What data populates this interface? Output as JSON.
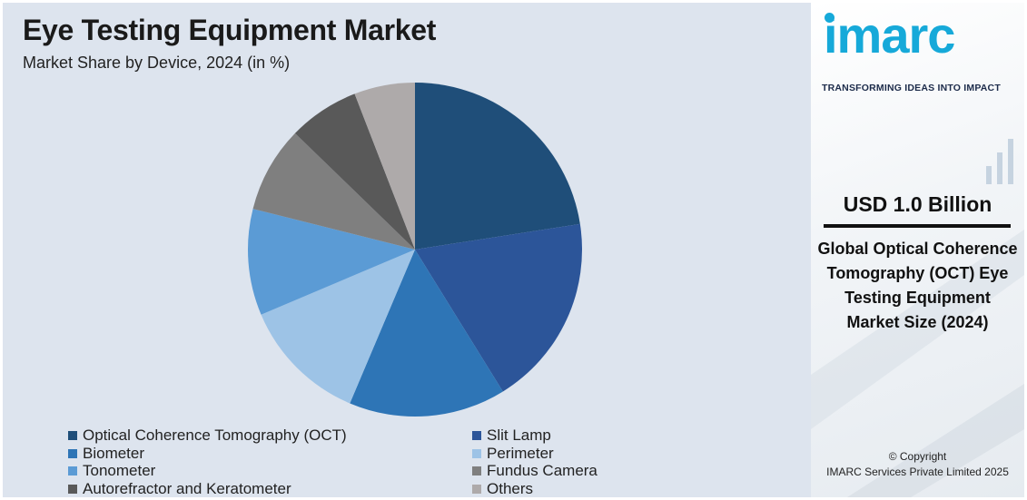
{
  "header": {
    "title": "Eye Testing Equipment Market",
    "subtitle": "Market Share by Device, 2024 (in %)"
  },
  "chart_data": {
    "type": "pie",
    "title": "Eye Testing Equipment Market",
    "subtitle": "Market Share by Device, 2024 (in %)",
    "start_angle_deg": 0,
    "direction": "clockwise",
    "legend_position": "bottom",
    "slices": [
      {
        "label": "Optical Coherence Tomography (OCT)",
        "value": 23.0,
        "color": "#1f4e79"
      },
      {
        "label": "Slit Lamp",
        "value": 19.0,
        "color": "#2c5599"
      },
      {
        "label": "Biometer",
        "value": 15.5,
        "color": "#2e75b6"
      },
      {
        "label": "Perimeter",
        "value": 12.5,
        "color": "#9dc3e6"
      },
      {
        "label": "Tonometer",
        "value": 10.5,
        "color": "#5b9bd5"
      },
      {
        "label": "Fundus Camera",
        "value": 8.5,
        "color": "#7f7f7f"
      },
      {
        "label": "Autorefractor and Keratometer",
        "value": 7.0,
        "color": "#595959"
      },
      {
        "label": "Others",
        "value": 6.0,
        "color": "#aeaaaa"
      }
    ]
  },
  "sidebar": {
    "logo_text": "imarc",
    "tagline": "TRANSFORMING IDEAS INTO IMPACT",
    "kpi_value": "USD 1.0 Billion",
    "kpi_description": "Global Optical Coherence Tomography (OCT) Eye Testing Equipment Market Size (2024)",
    "copyright_line1": "© Copyright",
    "copyright_line2": "IMARC Services Private Limited 2025"
  }
}
